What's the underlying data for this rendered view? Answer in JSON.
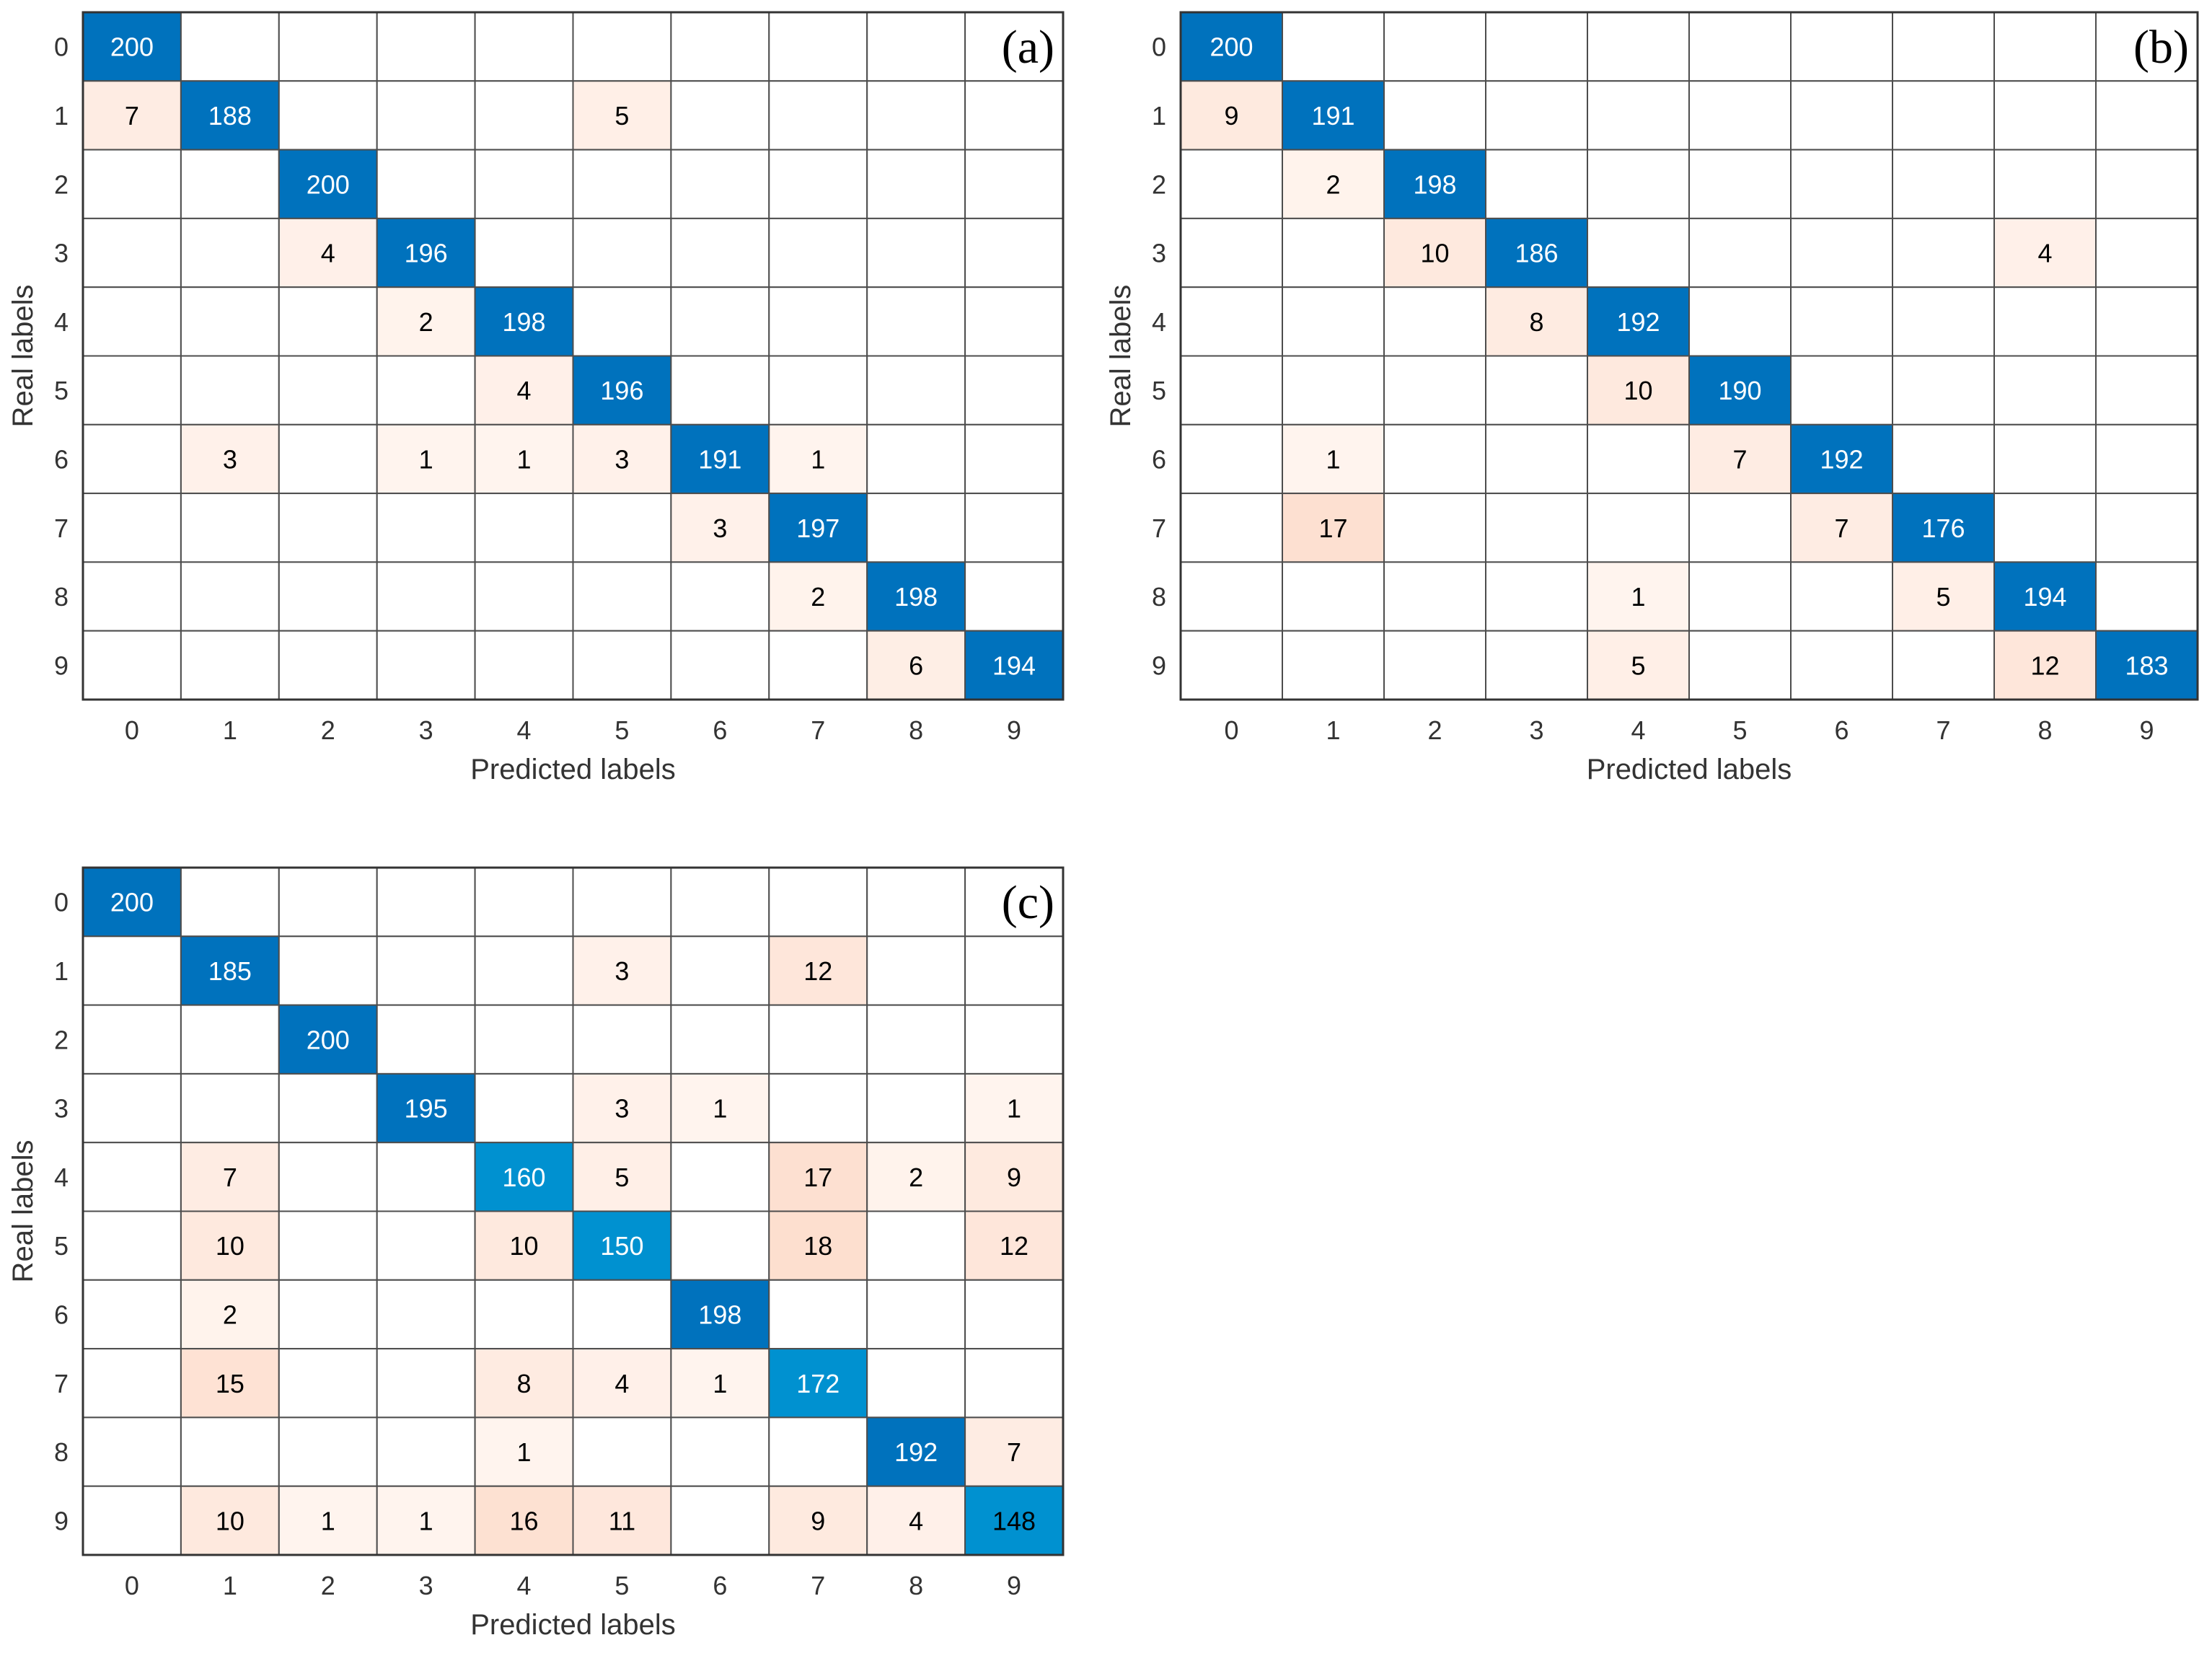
{
  "colors": {
    "diagonal": "#0072BD",
    "diagonal_light": "#0091D0",
    "off_low": "#FFF5F0",
    "off_high": "#FDDCCB",
    "grid": "#4d4d4d",
    "text_dark": "#000000",
    "text_light": "#ffffff"
  },
  "chart_data": [
    {
      "type": "heatmap",
      "panel": "(a)",
      "xlabel": "Predicted labels",
      "ylabel": "Real labels",
      "x_ticks": [
        "0",
        "1",
        "2",
        "3",
        "4",
        "5",
        "6",
        "7",
        "8",
        "9"
      ],
      "y_ticks": [
        "0",
        "1",
        "2",
        "3",
        "4",
        "5",
        "6",
        "7",
        "8",
        "9"
      ],
      "matrix": [
        [
          200,
          0,
          0,
          0,
          0,
          0,
          0,
          0,
          0,
          0
        ],
        [
          7,
          188,
          0,
          0,
          0,
          5,
          0,
          0,
          0,
          0
        ],
        [
          0,
          0,
          200,
          0,
          0,
          0,
          0,
          0,
          0,
          0
        ],
        [
          0,
          0,
          4,
          196,
          0,
          0,
          0,
          0,
          0,
          0
        ],
        [
          0,
          0,
          0,
          2,
          198,
          0,
          0,
          0,
          0,
          0
        ],
        [
          0,
          0,
          0,
          0,
          4,
          196,
          0,
          0,
          0,
          0
        ],
        [
          0,
          3,
          0,
          1,
          1,
          3,
          191,
          1,
          0,
          0
        ],
        [
          0,
          0,
          0,
          0,
          0,
          0,
          3,
          197,
          0,
          0
        ],
        [
          0,
          0,
          0,
          0,
          0,
          0,
          0,
          2,
          198,
          0
        ],
        [
          0,
          0,
          0,
          0,
          0,
          0,
          0,
          0,
          6,
          194
        ]
      ]
    },
    {
      "type": "heatmap",
      "panel": "(b)",
      "xlabel": "Predicted labels",
      "ylabel": "Real labels",
      "x_ticks": [
        "0",
        "1",
        "2",
        "3",
        "4",
        "5",
        "6",
        "7",
        "8",
        "9"
      ],
      "y_ticks": [
        "0",
        "1",
        "2",
        "3",
        "4",
        "5",
        "6",
        "7",
        "8",
        "9"
      ],
      "matrix": [
        [
          200,
          0,
          0,
          0,
          0,
          0,
          0,
          0,
          0,
          0
        ],
        [
          9,
          191,
          0,
          0,
          0,
          0,
          0,
          0,
          0,
          0
        ],
        [
          0,
          2,
          198,
          0,
          0,
          0,
          0,
          0,
          0,
          0
        ],
        [
          0,
          0,
          10,
          186,
          0,
          0,
          0,
          0,
          4,
          0
        ],
        [
          0,
          0,
          0,
          8,
          192,
          0,
          0,
          0,
          0,
          0
        ],
        [
          0,
          0,
          0,
          0,
          10,
          190,
          0,
          0,
          0,
          0
        ],
        [
          0,
          1,
          0,
          0,
          0,
          7,
          192,
          0,
          0,
          0
        ],
        [
          0,
          17,
          0,
          0,
          0,
          0,
          7,
          176,
          0,
          0
        ],
        [
          0,
          0,
          0,
          0,
          1,
          0,
          0,
          5,
          194,
          0
        ],
        [
          0,
          0,
          0,
          0,
          5,
          0,
          0,
          0,
          12,
          183
        ]
      ]
    },
    {
      "type": "heatmap",
      "panel": "(c)",
      "xlabel": "Predicted labels",
      "ylabel": "Real labels",
      "x_ticks": [
        "0",
        "1",
        "2",
        "3",
        "4",
        "5",
        "6",
        "7",
        "8",
        "9"
      ],
      "y_ticks": [
        "0",
        "1",
        "2",
        "3",
        "4",
        "5",
        "6",
        "7",
        "8",
        "9"
      ],
      "matrix": [
        [
          200,
          0,
          0,
          0,
          0,
          0,
          0,
          0,
          0,
          0
        ],
        [
          0,
          185,
          0,
          0,
          0,
          3,
          0,
          12,
          0,
          0
        ],
        [
          0,
          0,
          200,
          0,
          0,
          0,
          0,
          0,
          0,
          0
        ],
        [
          0,
          0,
          0,
          195,
          0,
          3,
          1,
          0,
          0,
          1
        ],
        [
          0,
          7,
          0,
          0,
          160,
          5,
          0,
          17,
          2,
          9
        ],
        [
          0,
          10,
          0,
          0,
          10,
          150,
          0,
          18,
          0,
          12
        ],
        [
          0,
          2,
          0,
          0,
          0,
          0,
          198,
          0,
          0,
          0
        ],
        [
          0,
          15,
          0,
          0,
          8,
          4,
          1,
          172,
          0,
          0
        ],
        [
          0,
          0,
          0,
          0,
          1,
          0,
          0,
          0,
          192,
          7
        ],
        [
          0,
          10,
          1,
          1,
          16,
          11,
          0,
          9,
          4,
          148
        ]
      ]
    }
  ]
}
